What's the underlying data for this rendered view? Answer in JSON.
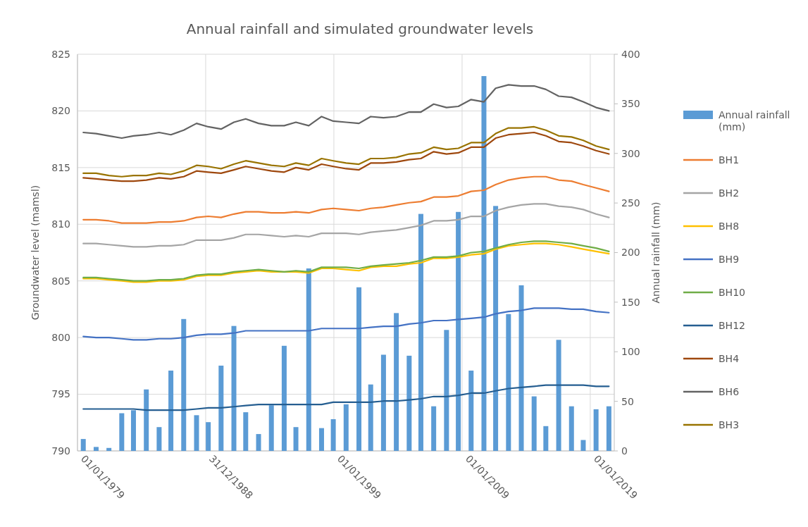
{
  "chart_data": {
    "type": "line",
    "title": "Annual rainfall and simulated groundwater levels",
    "ylabel": "Groundwater  level (mamsl)",
    "y2label": "Annual rainfall (mm)",
    "x": [
      "1979-06",
      "1980-06",
      "1981-06",
      "1982-06",
      "1983-05",
      "1984-05",
      "1985-05",
      "1986-04",
      "1987-04",
      "1988-04",
      "1989-03",
      "1990-03",
      "1991-03",
      "1992-02",
      "1993-02",
      "1994-02",
      "1995-02",
      "1996-01",
      "1997-01",
      "1998-01",
      "1998-12",
      "1999-12",
      "2000-12",
      "2001-11",
      "2002-11",
      "2003-11",
      "2004-11",
      "2005-10",
      "2006-10",
      "2007-10",
      "2008-09",
      "2009-09",
      "2010-09",
      "2011-08",
      "2012-08",
      "2013-08",
      "2014-08",
      "2015-07",
      "2016-07",
      "2017-07",
      "2018-06",
      "2019-06",
      "2020-06"
    ],
    "xlim": [
      "1979-01-01",
      "2020-11-15"
    ],
    "xticks": [
      {
        "value": "1979-01-01",
        "label": "01/01/1979"
      },
      {
        "value": "1988-12-31",
        "label": "31/12/1988"
      },
      {
        "value": "1999-01-01",
        "label": "01/01/1999"
      },
      {
        "value": "2009-01-01",
        "label": "01/01/2009"
      },
      {
        "value": "2019-01-01",
        "label": "01/01/2019"
      }
    ],
    "ylim": [
      790,
      825
    ],
    "yticks": [
      790,
      795,
      800,
      805,
      810,
      815,
      820,
      825
    ],
    "y2lim": [
      0,
      400
    ],
    "y2ticks": [
      0,
      50,
      100,
      150,
      200,
      250,
      300,
      350,
      400
    ],
    "grid": true,
    "legend": "right",
    "series": [
      {
        "name": "Annual rainfall (mm)",
        "type": "bar",
        "axis": "y2",
        "color": "#5b9bd5",
        "values": [
          12,
          4,
          3,
          38,
          41,
          62,
          24,
          81,
          133,
          36,
          29,
          86,
          126,
          39,
          17,
          46,
          106,
          24,
          184,
          23,
          32,
          47,
          165,
          67,
          97,
          139,
          96,
          239,
          45,
          122,
          241,
          81,
          378,
          247,
          138,
          167,
          55,
          25,
          112,
          45,
          11,
          42,
          45
        ]
      },
      {
        "name": "BH1",
        "color": "#ed7d31",
        "values": [
          810.4,
          810.4,
          810.3,
          810.1,
          810.1,
          810.1,
          810.2,
          810.2,
          810.3,
          810.6,
          810.7,
          810.6,
          810.9,
          811.1,
          811.1,
          811.0,
          811.0,
          811.1,
          811.0,
          811.3,
          811.4,
          811.3,
          811.2,
          811.4,
          811.5,
          811.7,
          811.9,
          812.0,
          812.4,
          812.4,
          812.5,
          812.9,
          813.0,
          813.5,
          813.9,
          814.1,
          814.2,
          814.2,
          813.9,
          813.8,
          813.5,
          813.2,
          812.9
        ]
      },
      {
        "name": "BH2",
        "color": "#a5a5a5",
        "values": [
          808.3,
          808.3,
          808.2,
          808.1,
          808.0,
          808.0,
          808.1,
          808.1,
          808.2,
          808.6,
          808.6,
          808.6,
          808.8,
          809.1,
          809.1,
          809.0,
          808.9,
          809.0,
          808.9,
          809.2,
          809.2,
          809.2,
          809.1,
          809.3,
          809.4,
          809.5,
          809.7,
          809.9,
          810.3,
          810.3,
          810.4,
          810.7,
          810.7,
          811.2,
          811.5,
          811.7,
          811.8,
          811.8,
          811.6,
          811.5,
          811.3,
          810.9,
          810.6
        ]
      },
      {
        "name": "BH8",
        "color": "#ffc000",
        "values": [
          805.2,
          805.2,
          805.1,
          805.0,
          804.9,
          804.9,
          805.0,
          805.0,
          805.1,
          805.4,
          805.5,
          805.5,
          805.7,
          805.8,
          805.9,
          805.8,
          805.8,
          805.8,
          805.7,
          806.1,
          806.1,
          806.0,
          805.9,
          806.2,
          806.3,
          806.3,
          806.5,
          806.6,
          807.0,
          807.0,
          807.1,
          807.3,
          807.4,
          807.8,
          808.1,
          808.2,
          808.3,
          808.3,
          808.2,
          808.0,
          807.8,
          807.6,
          807.4
        ]
      },
      {
        "name": "BH9",
        "color": "#4472c4",
        "values": [
          800.1,
          800.0,
          800.0,
          799.9,
          799.8,
          799.8,
          799.9,
          799.9,
          800.0,
          800.2,
          800.3,
          800.3,
          800.4,
          800.6,
          800.6,
          800.6,
          800.6,
          800.6,
          800.6,
          800.8,
          800.8,
          800.8,
          800.8,
          800.9,
          801.0,
          801.0,
          801.2,
          801.3,
          801.5,
          801.5,
          801.6,
          801.7,
          801.8,
          802.1,
          802.3,
          802.4,
          802.6,
          802.6,
          802.6,
          802.5,
          802.5,
          802.3,
          802.2
        ]
      },
      {
        "name": "BH10",
        "color": "#70ad47",
        "values": [
          805.3,
          805.3,
          805.2,
          805.1,
          805.0,
          805.0,
          805.1,
          805.1,
          805.2,
          805.5,
          805.6,
          805.6,
          805.8,
          805.9,
          806.0,
          805.9,
          805.8,
          805.9,
          805.8,
          806.2,
          806.2,
          806.2,
          806.1,
          806.3,
          806.4,
          806.5,
          806.6,
          806.8,
          807.1,
          807.1,
          807.2,
          807.5,
          807.6,
          807.9,
          808.2,
          808.4,
          808.5,
          808.5,
          808.4,
          808.3,
          808.1,
          807.9,
          807.6
        ]
      },
      {
        "name": "BH12",
        "color": "#255e91",
        "values": [
          793.7,
          793.7,
          793.7,
          793.7,
          793.7,
          793.6,
          793.6,
          793.6,
          793.6,
          793.7,
          793.8,
          793.8,
          793.9,
          794.0,
          794.1,
          794.1,
          794.1,
          794.1,
          794.1,
          794.1,
          794.3,
          794.3,
          794.3,
          794.3,
          794.4,
          794.4,
          794.5,
          794.6,
          794.8,
          794.8,
          794.9,
          795.1,
          795.1,
          795.3,
          795.5,
          795.6,
          795.7,
          795.8,
          795.8,
          795.8,
          795.8,
          795.7,
          795.7
        ]
      },
      {
        "name": "BH4",
        "color": "#9e480e",
        "values": [
          814.1,
          814.0,
          813.9,
          813.8,
          813.8,
          813.9,
          814.1,
          814.0,
          814.2,
          814.7,
          814.6,
          814.5,
          814.8,
          815.1,
          814.9,
          814.7,
          814.6,
          815.0,
          814.8,
          815.3,
          815.1,
          814.9,
          814.8,
          815.4,
          815.4,
          815.5,
          815.7,
          815.8,
          816.4,
          816.2,
          816.3,
          816.8,
          816.8,
          817.6,
          817.9,
          818.0,
          818.1,
          817.8,
          817.3,
          817.2,
          816.9,
          816.5,
          816.2
        ]
      },
      {
        "name": "BH6",
        "color": "#636363",
        "values": [
          818.1,
          818.0,
          817.8,
          817.6,
          817.8,
          817.9,
          818.1,
          817.9,
          818.3,
          818.9,
          818.6,
          818.4,
          819.0,
          819.3,
          818.9,
          818.7,
          818.7,
          819.0,
          818.7,
          819.5,
          819.1,
          819.0,
          818.9,
          819.5,
          819.4,
          819.5,
          819.9,
          819.9,
          820.6,
          820.3,
          820.4,
          821.0,
          820.8,
          822.0,
          822.3,
          822.2,
          822.2,
          821.9,
          821.3,
          821.2,
          820.8,
          820.3,
          820.0
        ]
      },
      {
        "name": "BH3",
        "color": "#997300",
        "values": [
          814.5,
          814.5,
          814.3,
          814.2,
          814.3,
          814.3,
          814.5,
          814.4,
          814.7,
          815.2,
          815.1,
          814.9,
          815.3,
          815.6,
          815.4,
          815.2,
          815.1,
          815.4,
          815.2,
          815.8,
          815.6,
          815.4,
          815.3,
          815.8,
          815.8,
          815.9,
          816.2,
          816.3,
          816.8,
          816.6,
          816.7,
          817.2,
          817.2,
          818.0,
          818.5,
          818.5,
          818.6,
          818.3,
          817.8,
          817.7,
          817.4,
          816.9,
          816.6
        ]
      }
    ]
  }
}
